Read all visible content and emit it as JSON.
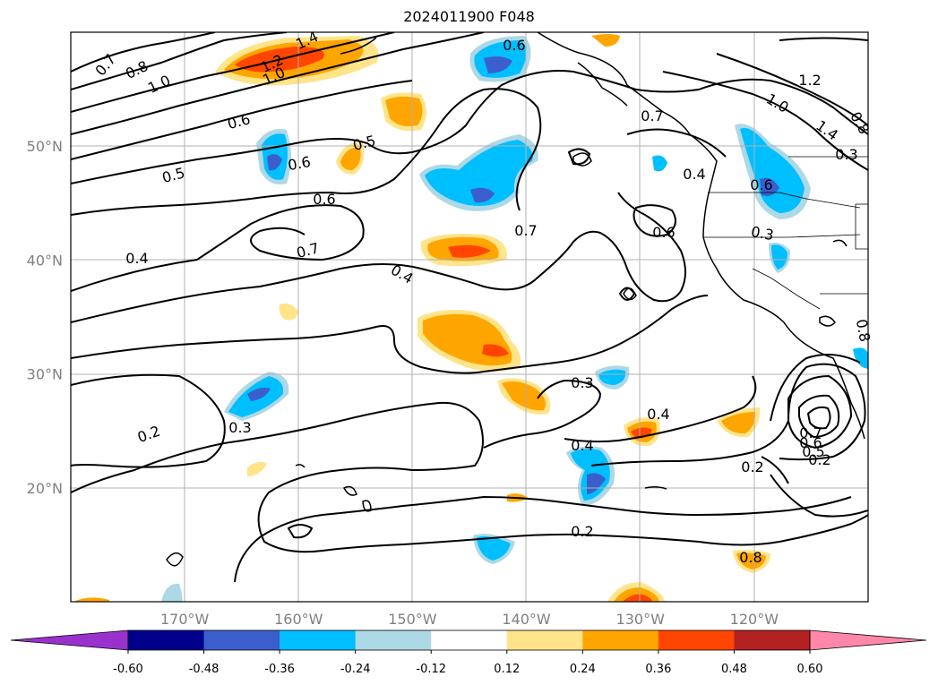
{
  "title": "2024011900 F048",
  "lat_labels": [
    {
      "text": "50°N",
      "lat": 50
    },
    {
      "text": "40°N",
      "lat": 40
    },
    {
      "text": "30°N",
      "lat": 30
    },
    {
      "text": "20°N",
      "lat": 20
    }
  ],
  "lon_labels": [
    {
      "text": "170°W",
      "lon": -170
    },
    {
      "text": "160°W",
      "lon": -160
    },
    {
      "text": "150°W",
      "lon": -150
    },
    {
      "text": "140°W",
      "lon": -140
    },
    {
      "text": "130°W",
      "lon": -130
    },
    {
      "text": "120°W",
      "lon": -120
    }
  ],
  "map_extent": {
    "lon_min": -180,
    "lon_max": -110,
    "lat_min": 10,
    "lat_max": 60
  },
  "colorbar": {
    "ticks": [
      "-0.60",
      "-0.48",
      "-0.36",
      "-0.24",
      "-0.12",
      "0.12",
      "0.24",
      "0.36",
      "0.48",
      "0.60"
    ],
    "colors": [
      "#9932cc",
      "#00008b",
      "#3a5fcd",
      "#00bfff",
      "#add8e6",
      "#ffffff",
      "#ffe48a",
      "#ffa500",
      "#ff4500",
      "#b22222",
      "#ff88aa"
    ]
  },
  "contour_labels": [
    "0.7",
    "0.8",
    "1.0",
    "1.2",
    "1.4",
    "1.0",
    "0.6",
    "0.6",
    "0.5",
    "0.5",
    "0.6",
    "0.6",
    "0.7",
    "0.4",
    "0.4",
    "0.7",
    "0.6",
    "0.4",
    "0.6",
    "0.7",
    "1.2",
    "1.0",
    "1.4",
    "0.8",
    "0.3",
    "0.3",
    "0.3",
    "0.4",
    "0.4",
    "0.2",
    "0.2",
    "0.3",
    "0.2",
    "0.8",
    "0.7",
    "0.6",
    "0.5",
    "0.2",
    "0.8"
  ]
}
